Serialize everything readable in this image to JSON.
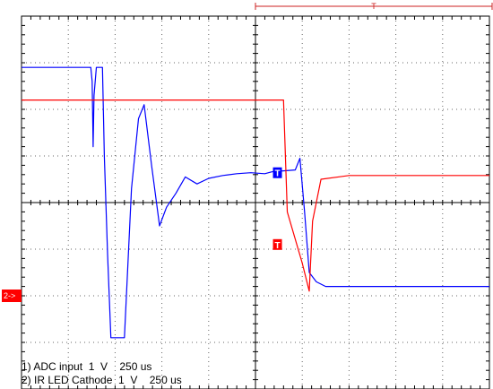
{
  "chart_data": {
    "type": "line",
    "title": "",
    "xlabel": "",
    "ylabel": "",
    "grid": true,
    "xlim": [
      0,
      10
    ],
    "ylim": [
      -4,
      4
    ],
    "timebase": {
      "label": "T",
      "from_div": 5.0,
      "to_div": 15.1
    },
    "trigger_marker": {
      "label": "T",
      "x": 5.47,
      "y": -0.9,
      "color": "#ff0000"
    },
    "channel_marker": {
      "label": "2->",
      "y": -2.0,
      "color": "#ff0000"
    },
    "series": [
      {
        "name": "1) ADC input  1  V    250 us",
        "color": "#0000ff",
        "points": [
          [
            0.0,
            2.9
          ],
          [
            1.48,
            2.9
          ],
          [
            1.51,
            2.6
          ],
          [
            1.53,
            1.2
          ],
          [
            1.55,
            2.3
          ],
          [
            1.6,
            2.9
          ],
          [
            1.73,
            2.9
          ],
          [
            1.77,
            1.0
          ],
          [
            1.84,
            -1.1
          ],
          [
            1.91,
            -2.9
          ],
          [
            2.2,
            -2.9
          ],
          [
            2.35,
            0.3
          ],
          [
            2.5,
            1.8
          ],
          [
            2.62,
            2.1
          ],
          [
            2.78,
            0.8
          ],
          [
            2.95,
            -0.5
          ],
          [
            3.1,
            -0.1
          ],
          [
            3.3,
            0.2
          ],
          [
            3.5,
            0.55
          ],
          [
            3.75,
            0.4
          ],
          [
            4.0,
            0.52
          ],
          [
            4.3,
            0.58
          ],
          [
            4.6,
            0.62
          ],
          [
            4.9,
            0.64
          ],
          [
            5.2,
            0.62
          ],
          [
            5.35,
            0.66
          ],
          [
            5.6,
            0.68
          ],
          [
            5.85,
            0.7
          ],
          [
            5.95,
            0.95
          ],
          [
            6.05,
            -0.2
          ],
          [
            6.15,
            -1.5
          ],
          [
            6.3,
            -1.7
          ],
          [
            6.5,
            -1.8
          ],
          [
            10.0,
            -1.8
          ]
        ]
      },
      {
        "name": "2) IR LED Cathode  1  V    250 us",
        "color": "#ff0000",
        "points": [
          [
            0.0,
            2.2
          ],
          [
            5.6,
            2.2
          ],
          [
            5.68,
            -0.2
          ],
          [
            6.0,
            -1.3
          ],
          [
            6.15,
            -1.9
          ],
          [
            6.22,
            -0.4
          ],
          [
            6.4,
            0.5
          ],
          [
            7.0,
            0.58
          ],
          [
            8.0,
            0.58
          ],
          [
            9.0,
            0.58
          ],
          [
            10.0,
            0.58
          ]
        ]
      }
    ]
  },
  "legend": {
    "line1": "1) ADC input  1  V    250 us",
    "line2": "2) IR LED Cathode  1  V    250 us"
  }
}
